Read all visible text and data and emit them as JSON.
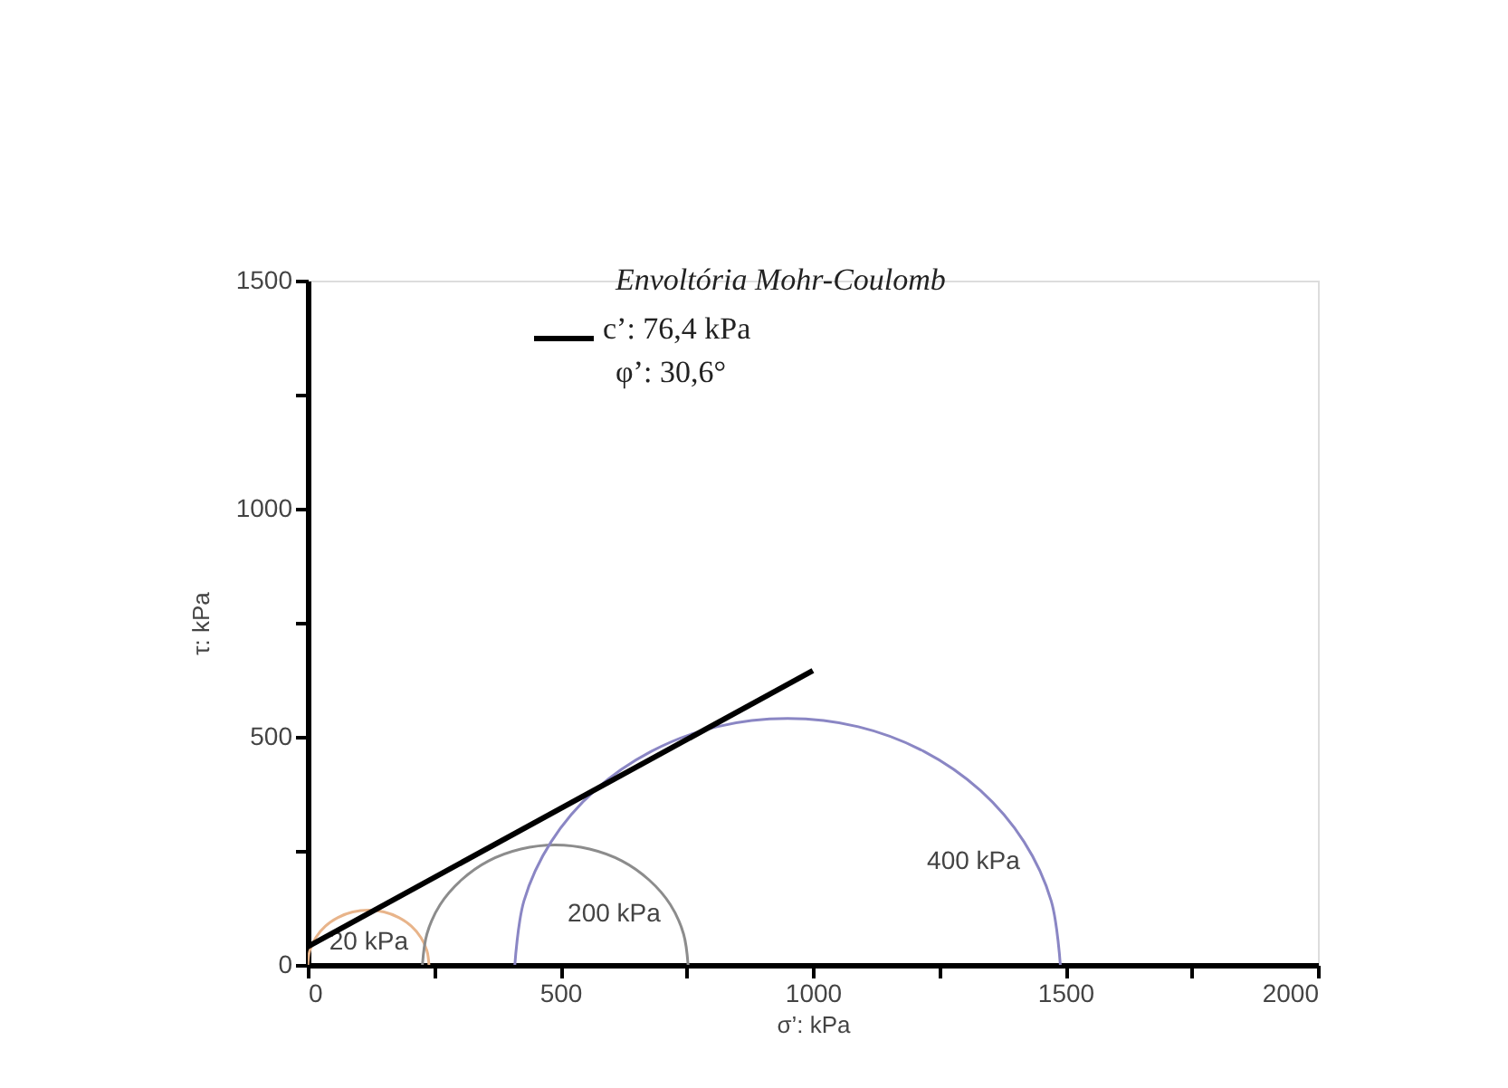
{
  "chart_data": {
    "type": "line",
    "xlabel": "σ’: kPa",
    "ylabel": "τ: kPa",
    "legend_title": "Envoltória Mohr-Coulomb",
    "legend": "top",
    "grid": false,
    "marker": "none",
    "line_style": "solid",
    "xlim": [
      0,
      2000
    ],
    "ylim": [
      0,
      1500
    ],
    "xticks": [
      0,
      {
        "value": 250,
        "label": null
      },
      500,
      {
        "value": 750,
        "label": null
      },
      1000,
      {
        "value": 1250,
        "label": null
      },
      1500,
      {
        "value": 1750,
        "label": null
      },
      2000
    ],
    "yticks": [
      0,
      {
        "value": 250,
        "label": null
      },
      500,
      {
        "value": 750,
        "label": null
      },
      1000,
      {
        "value": 1250,
        "label": null
      },
      1500
    ],
    "series": [
      {
        "name": "20 kPa",
        "color": "#e8b48a",
        "x": [
          240,
          236,
          224,
          205,
          180,
          151,
          120,
          89,
          60,
          35,
          16,
          4,
          0
        ],
        "values": [
          0,
          31,
          60,
          85,
          104,
          116,
          120,
          116,
          104,
          85,
          60,
          31,
          0
        ]
      },
      {
        "name": "200 kPa",
        "color": "#8c8c8c",
        "x": [
          753,
          744,
          718,
          676,
          622,
          558,
          490,
          422,
          358,
          304,
          262,
          236,
          227
        ],
        "values": [
          0,
          68,
          132,
          186,
          228,
          254,
          263,
          254,
          228,
          186,
          132,
          68,
          0
        ]
      },
      {
        "name": "400 kPa",
        "color": "#8a86c4",
        "x": [
          1490,
          1472,
          1418,
          1332,
          1220,
          1090,
          950,
          810,
          680,
          568,
          482,
          428,
          410
        ],
        "values": [
          0,
          140,
          270,
          382,
          468,
          522,
          540,
          522,
          468,
          382,
          270,
          140,
          0
        ]
      },
      {
        "name": "c’: 76,4 kPa\nφ’: 30,6°",
        "color": "#000000",
        "x": [
          0,
          1000
        ],
        "values": [
          40,
          645
        ]
      }
    ]
  }
}
